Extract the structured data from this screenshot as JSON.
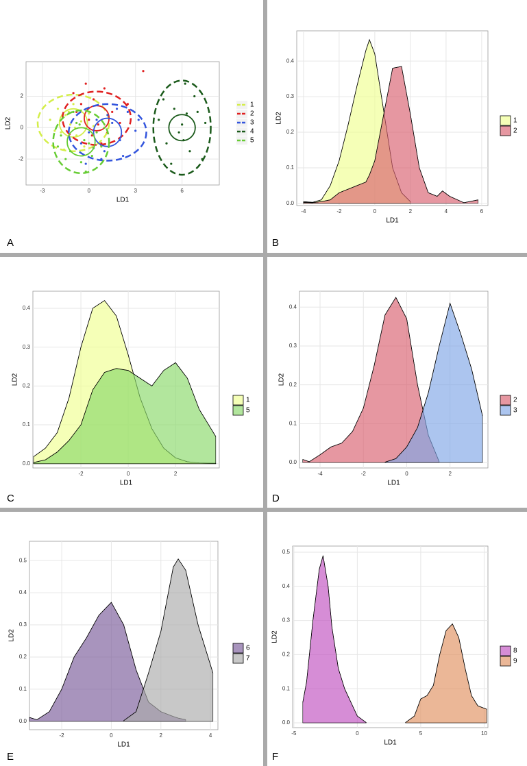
{
  "chart_data": [
    {
      "type": "scatter",
      "panel_label": "A",
      "x_label": "LD1",
      "y_label": "LD2",
      "grid": true,
      "xlim": [
        -4.05,
        8.4
      ],
      "ylim": [
        -3.65,
        4.2
      ],
      "xticks": [
        -3,
        0,
        3,
        6
      ],
      "yticks": [
        -2,
        0,
        2
      ],
      "series": [
        {
          "name": "1",
          "color": "#d4ee4a",
          "center": [
            -1,
            0.3
          ],
          "circle": [
            0.9,
            0.9
          ],
          "ellipse": [
            2.3,
            1.8
          ],
          "x": [
            -2.5,
            -2,
            -1.8,
            -1.5,
            -1.2,
            -1,
            -0.8,
            -0.5,
            -0.3,
            0,
            -2.2,
            -1.6,
            -0.9,
            -1.3,
            0.3
          ],
          "y": [
            0.5,
            1.2,
            -0.3,
            0.8,
            0.2,
            1.5,
            -0.5,
            0.4,
            -1.2,
            0.9,
            -0.2,
            -1.4,
            0,
            1,
            0.1
          ]
        },
        {
          "name": "2",
          "color": "#e02020",
          "center": [
            0.5,
            0.6
          ],
          "circle": [
            0.8,
            0.8
          ],
          "ellipse": [
            2.2,
            1.7
          ],
          "x": [
            -1,
            -0.5,
            0,
            0.3,
            0.6,
            1,
            1.5,
            2,
            0.2,
            -0.2,
            0.8,
            2.5,
            -0.8,
            1.2,
            3.5
          ],
          "y": [
            2.2,
            1.5,
            0.5,
            1.8,
            0.2,
            2.5,
            1,
            0.3,
            -0.5,
            2.8,
            -1,
            1.5,
            1,
            -0.3,
            3.6
          ]
        },
        {
          "name": "3",
          "color": "#3355dd",
          "center": [
            1.2,
            -0.3
          ],
          "circle": [
            0.9,
            0.9
          ],
          "ellipse": [
            2.5,
            1.8
          ],
          "x": [
            -0.5,
            0,
            0.5,
            1,
            1.5,
            2,
            2.5,
            3,
            0.8,
            1.8,
            -0.2,
            2.2,
            1.2,
            3.2,
            0.3
          ],
          "y": [
            -1,
            -0.3,
            0.5,
            -1.5,
            0.3,
            -0.8,
            1,
            -0.2,
            -2,
            1.2,
            -2.3,
            -1.8,
            0.8,
            0.5,
            -1.3
          ]
        },
        {
          "name": "4",
          "color": "#1a5a1a",
          "center": [
            6,
            0
          ],
          "circle": [
            0.85,
            0.83
          ],
          "ellipse": [
            1.85,
            3
          ],
          "x": [
            4.5,
            5,
            5.5,
            5.8,
            6,
            6.2,
            6.5,
            7,
            7.3,
            6.8,
            5.3,
            6.1,
            4.8,
            7.5,
            6.3
          ],
          "y": [
            0.5,
            -1,
            1.2,
            -0.3,
            0.2,
            2.8,
            -1.5,
            1,
            -2,
            2,
            -2.3,
            -0.8,
            1.8,
            0.3,
            0.9
          ]
        },
        {
          "name": "5",
          "color": "#66cc33",
          "center": [
            -0.5,
            -0.9
          ],
          "circle": [
            0.9,
            0.9
          ],
          "ellipse": [
            1.8,
            2
          ],
          "x": [
            -1.8,
            -1.2,
            -0.8,
            -0.5,
            0,
            0.5,
            -1.5,
            -0.2,
            0.8,
            -1,
            0.2,
            -2,
            1,
            -0.6,
            -0.3
          ],
          "y": [
            -0.5,
            -1.5,
            0.3,
            -2.2,
            -1,
            -0.3,
            -2,
            -2.8,
            -1.2,
            1,
            -1.8,
            -1.2,
            0,
            0.2,
            -0.8
          ]
        }
      ]
    },
    {
      "type": "area",
      "panel_label": "B",
      "x_label": "LD1",
      "y_label": "LD2",
      "grid": true,
      "xlim": [
        -4.38,
        6.35
      ],
      "ylim": [
        -0.006,
        0.485
      ],
      "xticks": [
        -4,
        -2,
        0,
        2,
        4,
        6
      ],
      "yticks": [
        {
          "value": 0,
          "label": "0.0"
        },
        0.1,
        0.2,
        0.3,
        0.4
      ],
      "x": [
        -4,
        -3.5,
        -3,
        -2.5,
        -2,
        -1.5,
        -1,
        -0.5,
        -0.3,
        0,
        0.5,
        1,
        1.5,
        2,
        2.5,
        3,
        3.5,
        3.8,
        4.2,
        5,
        5.8
      ],
      "series": [
        {
          "name": "1",
          "color": "#f0ff90",
          "values": [
            0.005,
            0.003,
            0.01,
            0.05,
            0.12,
            0.22,
            0.33,
            0.43,
            0.46,
            0.42,
            0.26,
            0.1,
            0.03,
            0.005,
            null,
            null,
            null,
            null,
            null,
            null,
            null
          ]
        },
        {
          "name": "2",
          "color": "#d9606e",
          "values": [
            0.003,
            0.002,
            0.005,
            0.01,
            0.03,
            0.04,
            0.05,
            0.06,
            0.08,
            0.12,
            0.25,
            0.38,
            0.385,
            0.25,
            0.1,
            0.03,
            0.02,
            0.035,
            0.02,
            0.002,
            0.01
          ]
        }
      ]
    },
    {
      "type": "area",
      "panel_label": "C",
      "x_label": "LD1",
      "y_label": "LD2",
      "grid": true,
      "xlim": [
        -4.03,
        3.85
      ],
      "ylim": [
        -0.011,
        0.444
      ],
      "xticks": [
        -2,
        0,
        2
      ],
      "yticks": [
        {
          "value": 0,
          "label": "0.0"
        },
        0.1,
        0.2,
        0.3,
        0.4
      ],
      "x": [
        -4,
        -3.5,
        -3,
        -2.5,
        -2,
        -1.5,
        -1,
        -0.5,
        0,
        0.5,
        1,
        1.5,
        2,
        2.5,
        3,
        3.7
      ],
      "series": [
        {
          "name": "1",
          "color": "#f0ff90",
          "values": [
            0.018,
            0.04,
            0.08,
            0.17,
            0.3,
            0.4,
            0.42,
            0.38,
            0.28,
            0.17,
            0.09,
            0.04,
            0.015,
            0.005,
            0.002,
            0.001
          ]
        },
        {
          "name": "5",
          "color": "#88d868",
          "values": [
            0.003,
            0.01,
            0.03,
            0.06,
            0.1,
            0.19,
            0.235,
            0.245,
            0.24,
            0.22,
            0.2,
            0.24,
            0.26,
            0.22,
            0.14,
            0.07
          ]
        }
      ]
    },
    {
      "type": "area",
      "panel_label": "D",
      "x_label": "LD1",
      "y_label": "LD2",
      "grid": true,
      "xlim": [
        -4.95,
        3.75
      ],
      "ylim": [
        -0.014,
        0.441
      ],
      "xticks": [
        -4,
        -2,
        0,
        2
      ],
      "yticks": [
        {
          "value": 0,
          "label": "0.0"
        },
        0.1,
        0.2,
        0.3,
        0.4
      ],
      "x": [
        -4.8,
        -4.5,
        -4,
        -3.5,
        -3,
        -2.5,
        -2,
        -1.5,
        -1,
        -0.5,
        0,
        0.5,
        1,
        1.5,
        2,
        2.5,
        3,
        3.5
      ],
      "series": [
        {
          "name": "2",
          "color": "#d9606e",
          "values": [
            0.008,
            0.002,
            0.02,
            0.04,
            0.05,
            0.08,
            0.14,
            0.25,
            0.38,
            0.425,
            0.37,
            0.2,
            0.07,
            0.002,
            null,
            null,
            null,
            null
          ]
        },
        {
          "name": "3",
          "color": "#7fa6e6",
          "values": [
            null,
            null,
            null,
            null,
            null,
            null,
            null,
            null,
            0.001,
            0.01,
            0.04,
            0.09,
            0.18,
            0.3,
            0.41,
            0.33,
            0.24,
            0.12
          ]
        }
      ]
    },
    {
      "type": "area",
      "panel_label": "E",
      "x_label": "LD1",
      "y_label": "LD2",
      "grid": true,
      "xlim": [
        -3.3,
        4.3
      ],
      "ylim": [
        -0.026,
        0.56
      ],
      "xticks": [
        -2,
        0,
        2,
        4
      ],
      "yticks": [
        {
          "value": 0,
          "label": "0.0"
        },
        0.1,
        0.2,
        0.3,
        0.4,
        0.5
      ],
      "x": [
        -3.3,
        -3,
        -2.5,
        -2,
        -1.5,
        -1,
        -0.5,
        0,
        0.5,
        1,
        1.5,
        2,
        2.5,
        2.7,
        3,
        3.5,
        4.1
      ],
      "series": [
        {
          "name": "6",
          "color": "#7a5a9a",
          "values": [
            0.012,
            0.005,
            0.03,
            0.1,
            0.2,
            0.26,
            0.33,
            0.37,
            0.3,
            0.16,
            0.06,
            0.03,
            0.015,
            0.01,
            0.005,
            null,
            null
          ]
        },
        {
          "name": "7",
          "color": "#aaaaaa",
          "values": [
            null,
            null,
            null,
            null,
            null,
            null,
            null,
            null,
            0.002,
            0.03,
            0.15,
            0.28,
            0.48,
            0.505,
            0.47,
            0.3,
            0.15
          ]
        }
      ]
    },
    {
      "type": "area",
      "panel_label": "F",
      "x_label": "LD1",
      "y_label": "LD2",
      "grid": true,
      "xlim": [
        -5.1,
        10.3
      ],
      "ylim": [
        -0.014,
        0.518
      ],
      "xticks": [
        -5,
        0,
        5,
        10
      ],
      "yticks": [
        {
          "value": 0,
          "label": "0.0"
        },
        0.1,
        0.2,
        0.3,
        0.4,
        0.5
      ],
      "x": [
        -4.3,
        -4,
        -3.5,
        -3,
        -2.7,
        -2.3,
        -2,
        -1.5,
        -1,
        -0.5,
        0,
        0.7,
        3.8,
        4.5,
        5,
        5.5,
        6,
        6.5,
        7,
        7.5,
        8,
        8.5,
        9,
        9.5,
        10.2
      ],
      "series": [
        {
          "name": "8",
          "color": "#c050c0",
          "values": [
            0.06,
            0.12,
            0.3,
            0.45,
            0.49,
            0.4,
            0.28,
            0.16,
            0.1,
            0.06,
            0.02,
            0.001,
            null,
            null,
            null,
            null,
            null,
            null,
            null,
            null,
            null,
            null,
            null,
            null,
            null
          ]
        },
        {
          "name": "9",
          "color": "#e09060",
          "values": [
            null,
            null,
            null,
            null,
            null,
            null,
            null,
            null,
            null,
            null,
            null,
            null,
            0.001,
            0.02,
            0.07,
            0.08,
            0.11,
            0.2,
            0.27,
            0.29,
            0.25,
            0.16,
            0.08,
            0.05,
            0.04
          ]
        }
      ]
    }
  ]
}
